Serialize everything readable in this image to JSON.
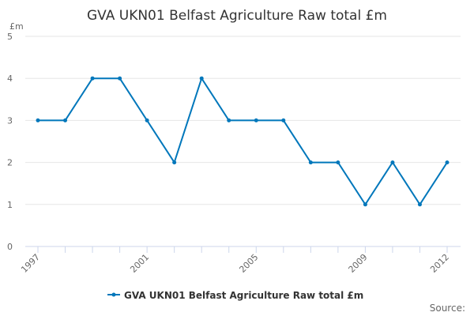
{
  "chart_data": {
    "type": "line",
    "title": "GVA UKN01 Belfast Agriculture Raw total £m",
    "ylabel": "£m",
    "xlabel": "",
    "x": [
      1997,
      1998,
      1999,
      2000,
      2001,
      2002,
      2003,
      2004,
      2005,
      2006,
      2007,
      2008,
      2009,
      2010,
      2011,
      2012
    ],
    "series": [
      {
        "name": "GVA UKN01 Belfast Agriculture Raw total £m",
        "values": [
          3,
          3,
          4,
          4,
          3,
          2,
          4,
          3,
          3,
          3,
          2,
          2,
          1,
          2,
          1,
          2
        ],
        "color": "#0077bb"
      }
    ],
    "x_tick_labels": [
      "1997",
      "2001",
      "2005",
      "2009",
      "2012"
    ],
    "y_tick_labels": [
      "0",
      "1",
      "2",
      "3",
      "4",
      "5"
    ],
    "ylim": [
      0,
      5
    ],
    "grid": true,
    "legend": "bottom-center",
    "credit": "Source:"
  }
}
